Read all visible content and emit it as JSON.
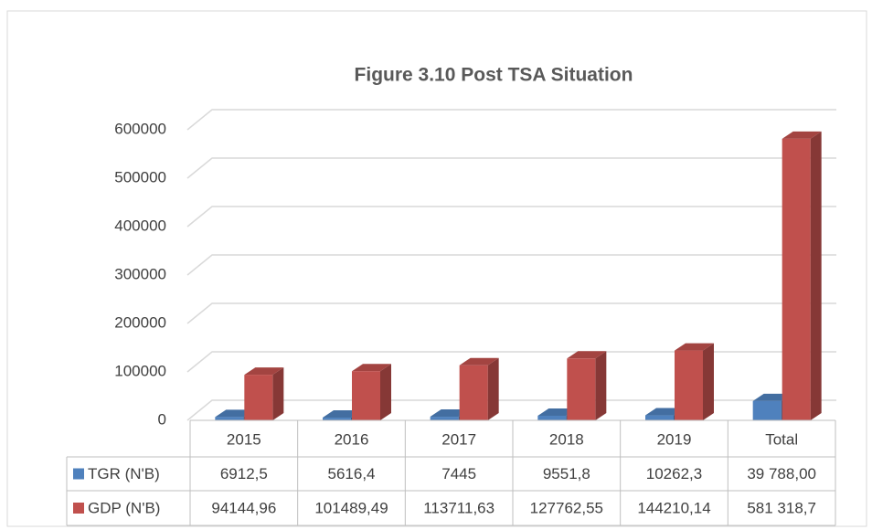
{
  "chart_data": {
    "type": "bar3d",
    "title": "Figure 3.10 Post TSA Situation",
    "categories": [
      "2015",
      "2016",
      "2017",
      "2018",
      "2019",
      "Total"
    ],
    "series": [
      {
        "name": "TGR (N'B)",
        "color": "#4f81bd",
        "values": [
          6912.5,
          5616.4,
          7445,
          9551.8,
          10262.3,
          39788.0
        ],
        "value_labels": [
          "6912,5",
          "5616,4",
          "7445",
          "9551,8",
          "10262,3",
          "39 788,00"
        ]
      },
      {
        "name": "GDP (N'B)",
        "color": "#c0504d",
        "values": [
          94144.96,
          101489.49,
          113711.63,
          127762.55,
          144210.14,
          581318.7
        ],
        "value_labels": [
          "94144,96",
          "101489,49",
          "113711,63",
          "127762,55",
          "144210,14",
          "581 318,7"
        ]
      }
    ],
    "ylim": [
      0,
      600000
    ],
    "yticks": [
      0,
      100000,
      200000,
      300000,
      400000,
      500000,
      600000
    ],
    "grid": true,
    "legend": "table"
  }
}
